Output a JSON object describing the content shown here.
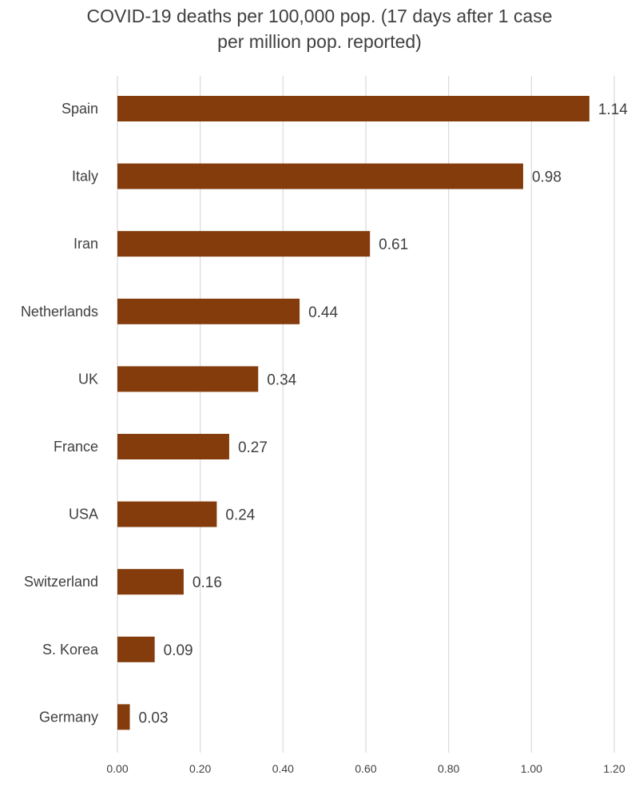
{
  "chart_data": {
    "type": "bar",
    "orientation": "horizontal",
    "title": [
      "COVID-19 deaths per 100,000 pop. (17 days after 1 case",
      "per million pop. reported)"
    ],
    "categories": [
      "Spain",
      "Italy",
      "Iran",
      "Netherlands",
      "UK",
      "France",
      "USA",
      "Switzerland",
      "S. Korea",
      "Germany"
    ],
    "values": [
      1.14,
      0.98,
      0.61,
      0.44,
      0.34,
      0.27,
      0.24,
      0.16,
      0.09,
      0.03
    ],
    "value_labels": [
      "1.14",
      "0.98",
      "0.61",
      "0.44",
      "0.34",
      "0.27",
      "0.24",
      "0.16",
      "0.09",
      "0.03"
    ],
    "xlim": [
      0,
      1.2
    ],
    "xticks": [
      0,
      0.2,
      0.4,
      0.6,
      0.8,
      1.0,
      1.2
    ],
    "xtick_labels": [
      "0.00",
      "0.20",
      "0.40",
      "0.60",
      "0.80",
      "1.00",
      "1.20"
    ],
    "xlabel": "",
    "ylabel": "",
    "grid": "vertical",
    "legend": "none",
    "bar_color": "#843c0c"
  }
}
